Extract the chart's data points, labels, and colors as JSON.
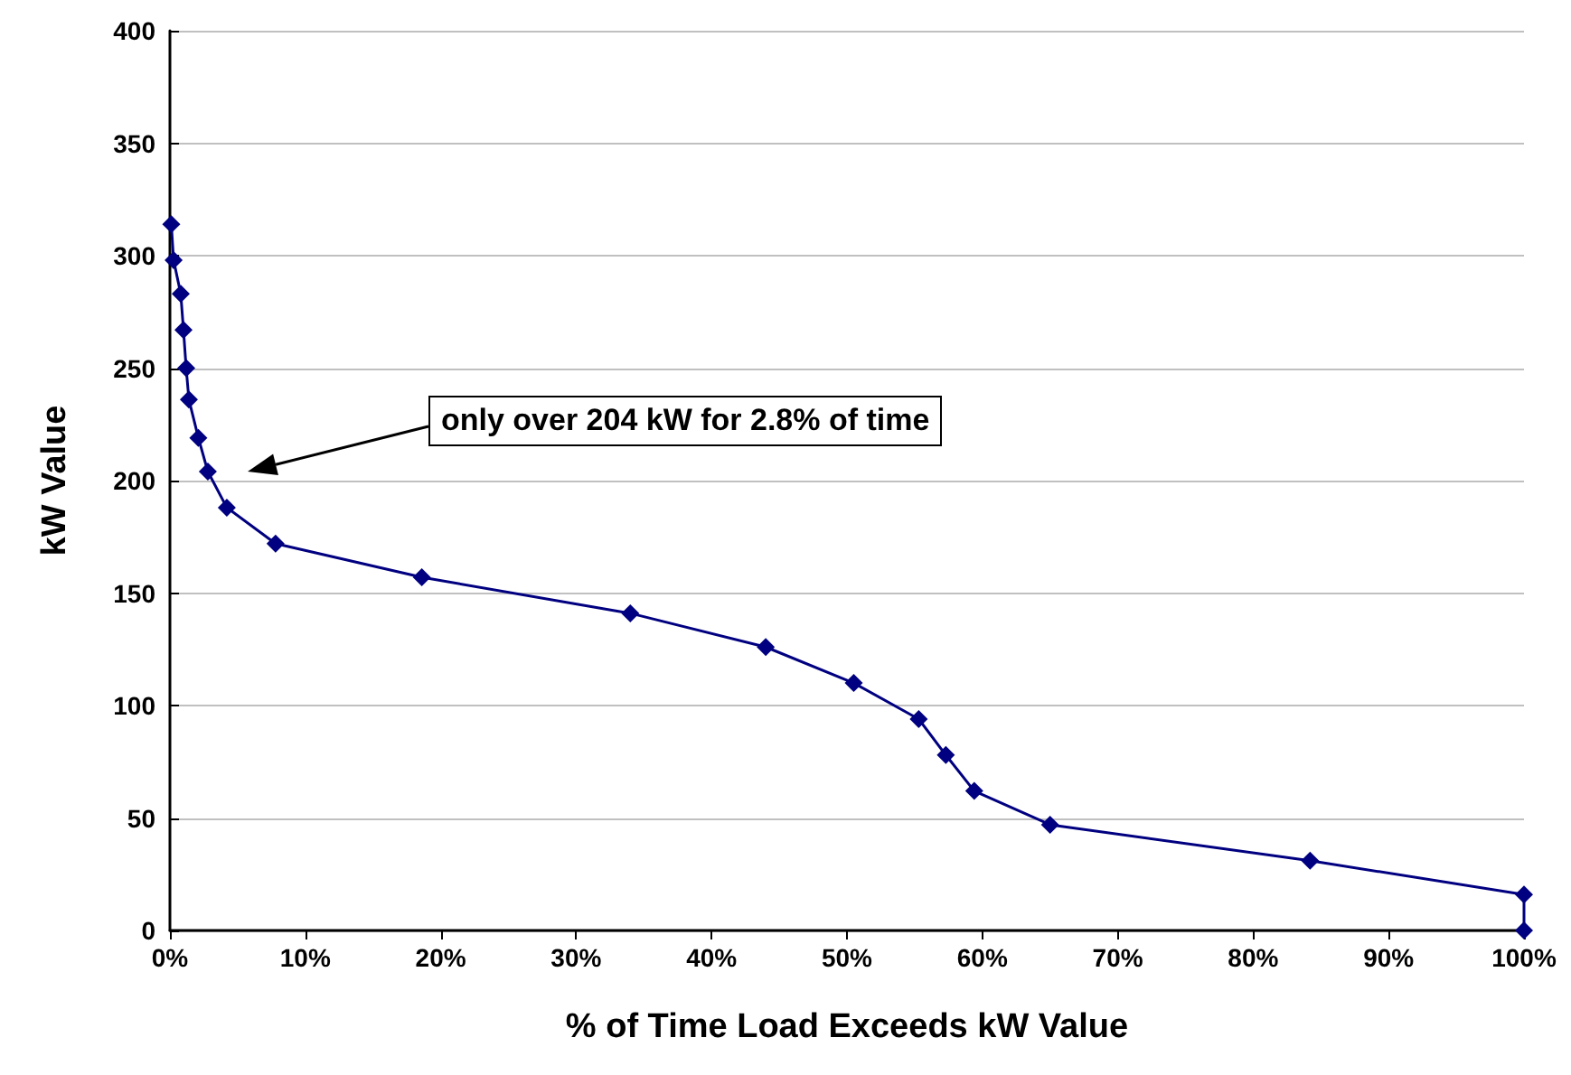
{
  "chart_data": {
    "type": "line",
    "xlabel": "% of Time Load Exceeds kW Value",
    "ylabel": "kW Value",
    "series": [
      {
        "color": "#000080",
        "x": [
          0.1,
          0.27,
          0.8,
          1.0,
          1.2,
          1.4,
          2.1,
          2.8,
          4.2,
          7.8,
          18.6,
          34,
          44,
          50.5,
          55.3,
          57.3,
          59.4,
          65,
          84.2,
          100,
          100
        ],
        "values": [
          314,
          298,
          283,
          267,
          250,
          236,
          219,
          204,
          188,
          172,
          157,
          141,
          126,
          110,
          94,
          78,
          62,
          47,
          31,
          16,
          0
        ]
      }
    ],
    "xlim": [
      0,
      100
    ],
    "xticks": [
      {
        "value": 0,
        "label": "0%"
      },
      {
        "value": 10,
        "label": "10%"
      },
      {
        "value": 20,
        "label": "20%"
      },
      {
        "value": 30,
        "label": "30%"
      },
      {
        "value": 40,
        "label": "40%"
      },
      {
        "value": 50,
        "label": "50%"
      },
      {
        "value": 60,
        "label": "60%"
      },
      {
        "value": 70,
        "label": "70%"
      },
      {
        "value": 80,
        "label": "80%"
      },
      {
        "value": 90,
        "label": "90%"
      },
      {
        "value": 100,
        "label": "100%"
      }
    ],
    "ylim": [
      0,
      400
    ],
    "yticks": [
      0,
      50,
      100,
      150,
      200,
      250,
      300,
      350,
      400
    ],
    "grid": "y",
    "marker": "diamond",
    "line_style": "solid",
    "annotations": [
      "only over 204 kW for 2.8% of time"
    ]
  }
}
